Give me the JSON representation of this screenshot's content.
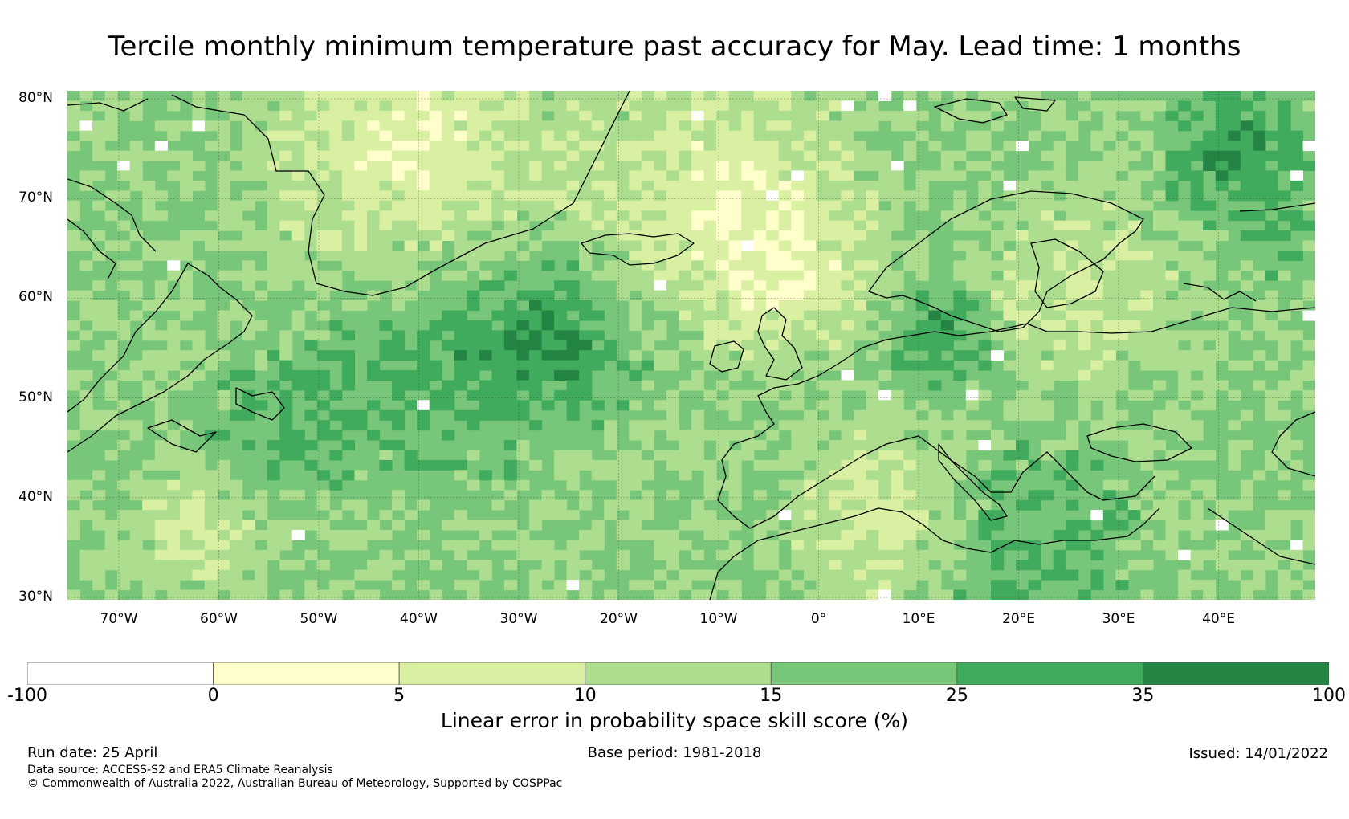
{
  "title": "Tercile monthly minimum temperature past accuracy for May. Lead time: 1 months",
  "map": {
    "lat_labels": [
      "80°N",
      "70°N",
      "60°N",
      "50°N",
      "40°N",
      "30°N"
    ],
    "lon_labels": [
      "70°W",
      "60°W",
      "50°W",
      "40°W",
      "30°W",
      "20°W",
      "10°W",
      "0°",
      "10°E",
      "20°E",
      "30°E",
      "40°E"
    ]
  },
  "colorbar": {
    "label": "Linear error in probability space skill score (%)",
    "ticks": [
      "-100",
      "0",
      "5",
      "10",
      "15",
      "25",
      "35",
      "100"
    ],
    "colors": [
      "#ffffff",
      "#ffffcc",
      "#d9f0a3",
      "#addd8e",
      "#78c679",
      "#41ab5d",
      "#238443"
    ]
  },
  "footer": {
    "run_date": "Run date: 25 April",
    "base_period": "Base period: 1981-2018",
    "issued": "Issued: 14/01/2022",
    "data_source": "Data source: ACCESS-S2 and ERA5 Climate Reanalysis",
    "copyright": "© Commonwealth of Australia 2022, Australian Bureau of Meteorology, Supported by COSPPac"
  }
}
